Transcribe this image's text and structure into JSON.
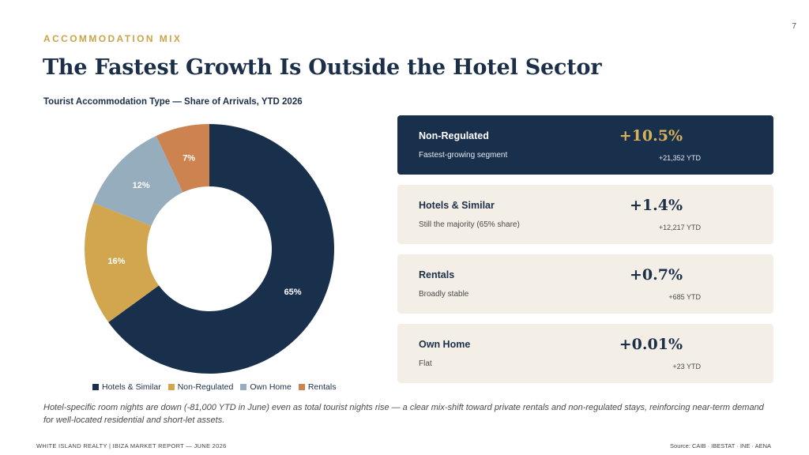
{
  "page_number": "7",
  "eyebrow": "ACCOMMODATION MIX",
  "title": "The Fastest Growth Is Outside the Hotel Sector",
  "chart_data": {
    "type": "pie",
    "variant": "donut",
    "title": "Tourist Accommodation Type — Share of Arrivals, YTD 2026",
    "categories": [
      "Hotels & Similar",
      "Non-Regulated",
      "Own Home",
      "Rentals"
    ],
    "values": [
      65,
      16,
      12,
      7
    ],
    "labels": [
      "65%",
      "16%",
      "12%",
      "7%"
    ],
    "colors": [
      "#19304d",
      "#d2a64f",
      "#95adbd",
      "#cd8350"
    ],
    "label_colors": [
      "#ffffff",
      "#ffffff",
      "#ffffff",
      "#ffffff"
    ],
    "legend_position": "bottom"
  },
  "cards": [
    {
      "name": "Non-Regulated",
      "desc": "Fastest-growing segment",
      "growth": "+10.5%",
      "ytd": "+21,352 YTD",
      "highlight": true
    },
    {
      "name": "Hotels & Similar",
      "desc": "Still the majority (65% share)",
      "growth": "+1.4%",
      "ytd": "+12,217 YTD",
      "highlight": false
    },
    {
      "name": "Rentals",
      "desc": "Broadly stable",
      "growth": "+0.7%",
      "ytd": "+685 YTD",
      "highlight": false
    },
    {
      "name": "Own Home",
      "desc": "Flat",
      "growth": "+0.01%",
      "ytd": "+23 YTD",
      "highlight": false
    }
  ],
  "footnote": "Hotel-specific room nights are down (-81,000 YTD in June) even as total tourist nights rise — a clear mix-shift toward private rentals and non-regulated stays, reinforcing near-term demand for well-located residential and short-let assets.",
  "footer": {
    "left": "WHITE ISLAND REALTY | IBIZA MARKET REPORT — JUNE 2026",
    "right": "Source: CAIB · IBESTAT · INE · AENA"
  }
}
